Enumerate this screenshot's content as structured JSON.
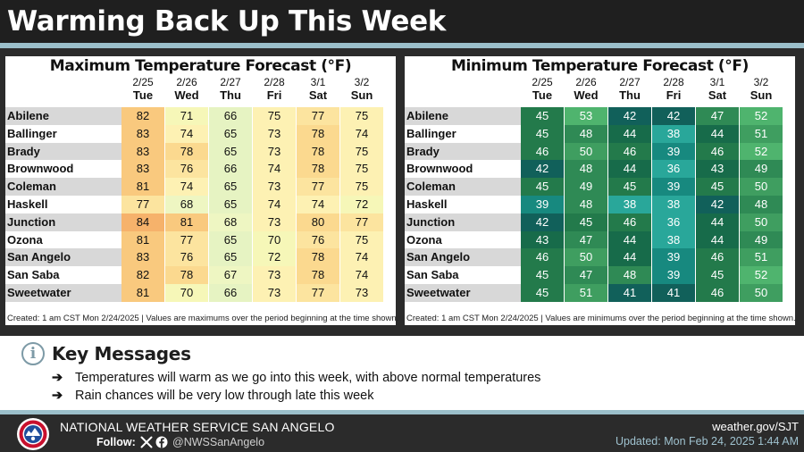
{
  "header": {
    "title": "Warming Back Up This Week"
  },
  "dates": [
    "2/25",
    "2/26",
    "2/27",
    "2/28",
    "3/1",
    "3/2"
  ],
  "days": [
    "Tue",
    "Wed",
    "Thu",
    "Fri",
    "Sat",
    "Sun"
  ],
  "max_panel": {
    "title": "Maximum Temperature Forecast (°F)",
    "footnote": "Created: 1 am CST Mon 2/24/2025  |  Values are maximums over the period beginning at the time shown.",
    "rows": [
      {
        "city": "Abilene",
        "vals": [
          "82",
          "71",
          "66",
          "75",
          "77",
          "75"
        ]
      },
      {
        "city": "Ballinger",
        "vals": [
          "83",
          "74",
          "65",
          "73",
          "78",
          "74"
        ]
      },
      {
        "city": "Brady",
        "vals": [
          "83",
          "78",
          "65",
          "73",
          "78",
          "75"
        ]
      },
      {
        "city": "Brownwood",
        "vals": [
          "83",
          "76",
          "66",
          "74",
          "78",
          "75"
        ]
      },
      {
        "city": "Coleman",
        "vals": [
          "81",
          "74",
          "65",
          "73",
          "77",
          "75"
        ]
      },
      {
        "city": "Haskell",
        "vals": [
          "77",
          "68",
          "65",
          "74",
          "74",
          "72"
        ]
      },
      {
        "city": "Junction",
        "vals": [
          "84",
          "81",
          "68",
          "73",
          "80",
          "77"
        ]
      },
      {
        "city": "Ozona",
        "vals": [
          "81",
          "77",
          "65",
          "70",
          "76",
          "75"
        ]
      },
      {
        "city": "San Angelo",
        "vals": [
          "83",
          "76",
          "65",
          "72",
          "78",
          "74"
        ]
      },
      {
        "city": "San Saba",
        "vals": [
          "82",
          "78",
          "67",
          "73",
          "78",
          "74"
        ]
      },
      {
        "city": "Sweetwater",
        "vals": [
          "81",
          "70",
          "66",
          "73",
          "77",
          "73"
        ]
      }
    ]
  },
  "min_panel": {
    "title": "Minimum Temperature Forecast (°F)",
    "footnote": "Created: 1 am CST Mon 2/24/2025  |  Values are minimums over the period beginning at the time shown.",
    "rows": [
      {
        "city": "Abilene",
        "vals": [
          "45",
          "53",
          "42",
          "42",
          "47",
          "52"
        ]
      },
      {
        "city": "Ballinger",
        "vals": [
          "45",
          "48",
          "44",
          "38",
          "44",
          "51"
        ]
      },
      {
        "city": "Brady",
        "vals": [
          "46",
          "50",
          "46",
          "39",
          "46",
          "52"
        ]
      },
      {
        "city": "Brownwood",
        "vals": [
          "42",
          "48",
          "44",
          "36",
          "43",
          "49"
        ]
      },
      {
        "city": "Coleman",
        "vals": [
          "45",
          "49",
          "45",
          "39",
          "45",
          "50"
        ]
      },
      {
        "city": "Haskell",
        "vals": [
          "39",
          "48",
          "38",
          "38",
          "42",
          "48"
        ]
      },
      {
        "city": "Junction",
        "vals": [
          "42",
          "45",
          "46",
          "36",
          "44",
          "50"
        ]
      },
      {
        "city": "Ozona",
        "vals": [
          "43",
          "47",
          "44",
          "38",
          "44",
          "49"
        ]
      },
      {
        "city": "San Angelo",
        "vals": [
          "46",
          "50",
          "44",
          "39",
          "46",
          "51"
        ]
      },
      {
        "city": "San Saba",
        "vals": [
          "45",
          "47",
          "48",
          "39",
          "45",
          "52"
        ]
      },
      {
        "city": "Sweetwater",
        "vals": [
          "45",
          "51",
          "41",
          "41",
          "46",
          "50"
        ]
      }
    ]
  },
  "key_messages": {
    "title": "Key Messages",
    "items": [
      "Temperatures will warm as we go into this week, with above normal temperatures",
      "Rain chances will be very low through late this week"
    ]
  },
  "footer": {
    "office": "NATIONAL WEATHER SERVICE SAN ANGELO",
    "follow": "Follow:",
    "handle": "@NWSSanAngelo",
    "site": "weather.gov/SJT",
    "updated": "Updated: Mon Feb 24, 2025 1:44 AM"
  },
  "colors": {
    "stripe": "#9bbfca",
    "background": "#2b2b2b",
    "updated_text": "#9fc2cf"
  }
}
